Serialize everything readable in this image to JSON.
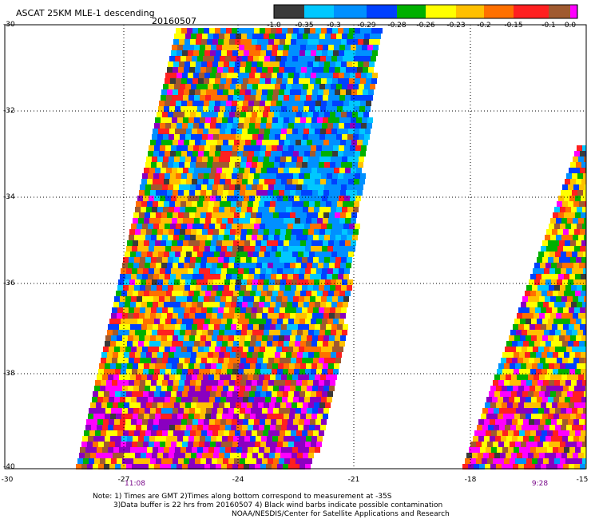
{
  "header": {
    "title": "ASCAT 25KM MLE-1 descending",
    "date": "20160507"
  },
  "colorbar": {
    "colors": [
      "#3a3a3a",
      "#00c8ff",
      "#0090ff",
      "#0040ff",
      "#00b000",
      "#ffff00",
      "#ffc000",
      "#ff7000",
      "#ff2020",
      "#a05a30",
      "#ff00ff",
      "#8a00c0"
    ],
    "labels": [
      "-1.0",
      "-0.35",
      "-0.3",
      "-0.29",
      "-0.28",
      "-0.26",
      "-0.23",
      "-0.2",
      "-0.15",
      "-0.1",
      "0.0"
    ]
  },
  "axes": {
    "lat_labels": [
      "-30",
      "-32",
      "-34",
      "-36",
      "-38",
      "-40"
    ],
    "lon_labels": [
      "-30",
      "-27",
      "-24",
      "-21",
      "-18",
      "-15"
    ]
  },
  "time_labels": [
    "11:08",
    "9:28"
  ],
  "notes": {
    "line1": "Note: 1) Times are GMT 2)Times along bottom correspond to measurement at -35S",
    "line2": "3)Data buffer is 22 hrs from 20160507 4) Black wind barbs indicate possible contamination",
    "line3": "NOAA/NESDIS/Center for Satellite Applications and Research"
  }
}
